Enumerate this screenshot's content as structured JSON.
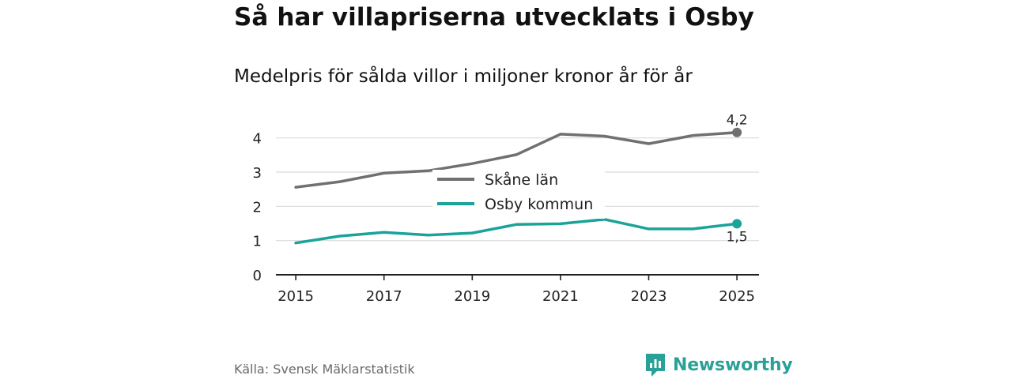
{
  "header": {
    "title": "Så har villapriserna utvecklats i Osby",
    "subtitle": "Medelpris för sålda villor i miljoner kronor år för år"
  },
  "footer": {
    "source": "Källa: Svensk Mäklarstatistik",
    "brand": "Newsworthy",
    "brand_icon": "bar-chart-logo-icon"
  },
  "colors": {
    "skane": "#707070",
    "osby": "#1aa39a",
    "grid": "#d9d9d9",
    "axis": "#222222",
    "brand": "#2aa198"
  },
  "chart_data": {
    "type": "line",
    "title": "Så har villapriserna utvecklats i Osby",
    "subtitle": "Medelpris för sålda villor i miljoner kronor år för år",
    "xlabel": "",
    "ylabel": "",
    "x": [
      2015,
      2016,
      2017,
      2018,
      2019,
      2020,
      2021,
      2022,
      2023,
      2024,
      2025
    ],
    "xlim": [
      2014.55,
      2025.5
    ],
    "xticks": [
      "2015",
      "2017",
      "2019",
      "2021",
      "2023",
      "2025"
    ],
    "ylim": [
      0,
      4.5
    ],
    "yticks": [
      "0",
      "1",
      "2",
      "3",
      "4"
    ],
    "grid": true,
    "legend_position": "center",
    "series": [
      {
        "name": "Skåne län",
        "color": "#707070",
        "values": [
          2.56,
          2.72,
          2.97,
          3.04,
          3.25,
          3.51,
          4.11,
          4.05,
          3.83,
          4.07,
          4.16
        ],
        "end_label": "4,2"
      },
      {
        "name": "Osby kommun",
        "color": "#1aa39a",
        "values": [
          0.93,
          1.13,
          1.24,
          1.16,
          1.22,
          1.47,
          1.49,
          1.62,
          1.34,
          1.34,
          1.49
        ],
        "end_label": "1,5"
      }
    ]
  }
}
